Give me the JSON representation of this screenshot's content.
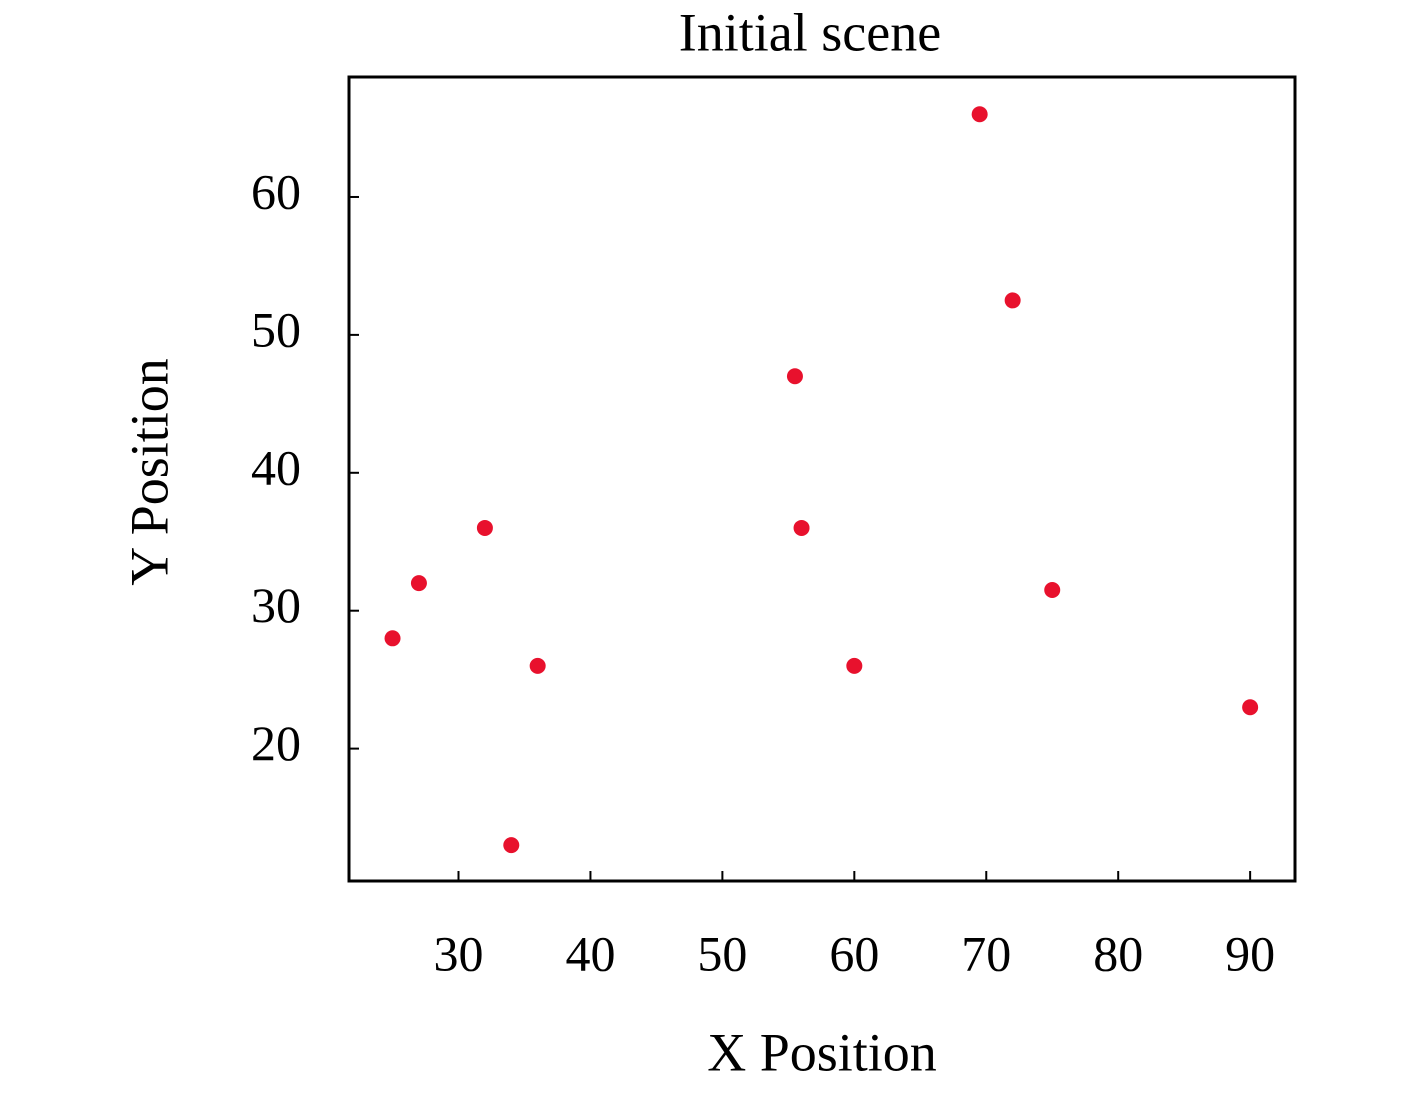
{
  "chart_data": {
    "type": "scatter",
    "title": "Initial scene",
    "x_label": "X Position",
    "y_label": "Y Position",
    "color": "#e8112d",
    "x": [
      25,
      27,
      32,
      34,
      36,
      55.5,
      56,
      60,
      69.5,
      72,
      75,
      90
    ],
    "values": [
      28,
      32,
      36,
      13,
      26,
      47,
      36,
      26,
      66,
      52.5,
      31.5,
      23
    ],
    "xlim": [
      21.7,
      93.4
    ],
    "ylim": [
      10.4,
      68.7
    ],
    "xticks": [
      30,
      40,
      50,
      60,
      70,
      80,
      90
    ],
    "yticks": [
      20,
      30,
      40,
      50,
      60
    ],
    "grid": false
  }
}
